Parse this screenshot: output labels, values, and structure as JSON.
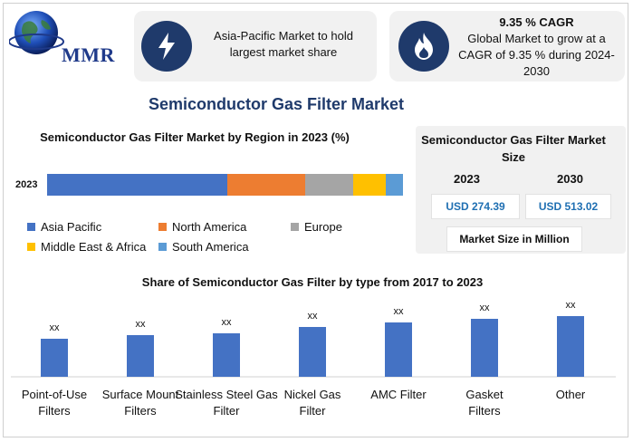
{
  "logo": {
    "text": "MMR"
  },
  "info_cards": [
    {
      "icon": "lightning-icon",
      "text": "Asia-Pacific Market to hold largest market share"
    },
    {
      "icon": "flame-icon",
      "headline": "9.35 % CAGR",
      "text": "Global Market to grow at a CAGR of 9.35 % during 2024-2030"
    }
  ],
  "main_title": "Semiconductor Gas Filter Market",
  "market_size": {
    "title": "Semiconductor Gas Filter Market Size",
    "years": [
      "2023",
      "2030"
    ],
    "values": [
      "USD 274.39",
      "USD 513.02"
    ],
    "unit_label": "Market Size in Million"
  },
  "colors": {
    "asia_pacific": "#4472c4",
    "north_america": "#ed7d31",
    "europe": "#a5a5a5",
    "middle_east_africa": "#ffc000",
    "south_america": "#5b9bd5",
    "icon_bg": "#1f3a6b",
    "title": "#1f3a6b"
  },
  "chart_data": [
    {
      "type": "bar",
      "orientation": "horizontal",
      "stacked": true,
      "title": "Semiconductor Gas Filter Market by Region in 2023 (%)",
      "categories": [
        "2023"
      ],
      "series": [
        {
          "name": "Asia Pacific",
          "values": [
            50.6
          ]
        },
        {
          "name": "North America",
          "values": [
            21.8
          ]
        },
        {
          "name": "Europe",
          "values": [
            13.7
          ]
        },
        {
          "name": "Middle East & Africa",
          "values": [
            9.2
          ]
        },
        {
          "name": "South America",
          "values": [
            4.7
          ]
        }
      ],
      "legend_position": "bottom"
    },
    {
      "type": "bar",
      "title": "Share  of Semiconductor Gas Filter by type from 2017 to 2023",
      "categories": [
        "Point-of-Use Filters",
        "Surface Mount Filters",
        "Stainless Steel Gas Filter",
        "Nickel Gas Filter",
        "AMC Filter",
        "Gasket Filters",
        "Other"
      ],
      "values": [
        42,
        46,
        48,
        55,
        60,
        64,
        67
      ],
      "data_labels": [
        "xx",
        "xx",
        "xx",
        "xx",
        "xx",
        "xx",
        "xx"
      ],
      "ylim": [
        0,
        100
      ],
      "grid": false
    }
  ]
}
